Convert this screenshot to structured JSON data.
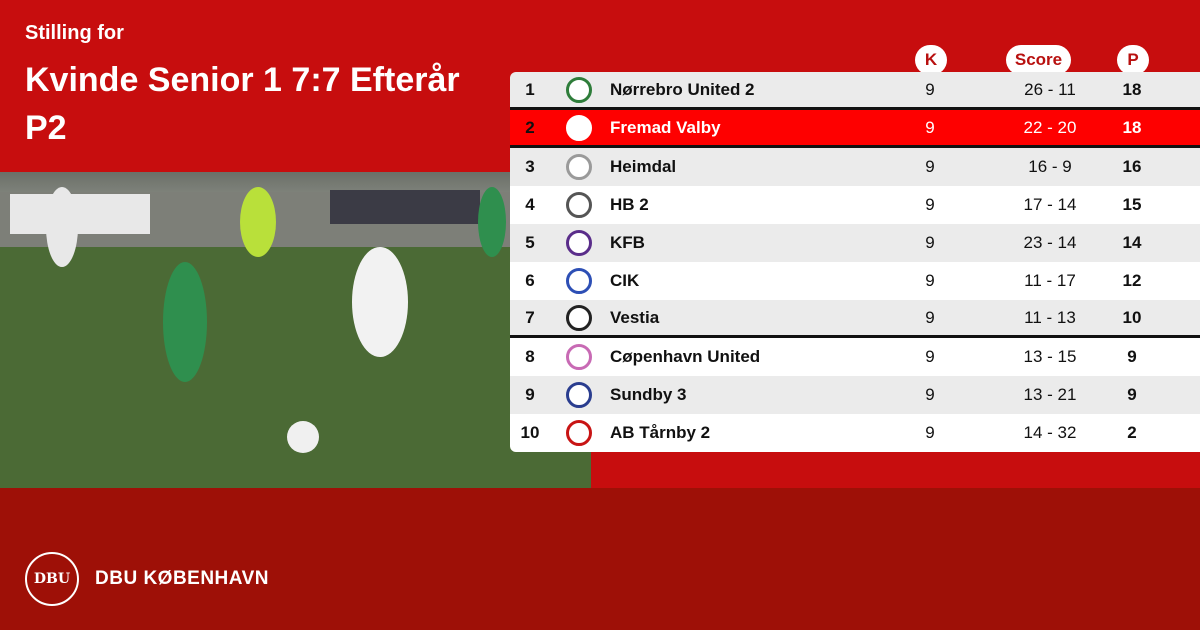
{
  "header": {
    "subtitle": "Stilling for",
    "title": "Kvinde Senior 1 7:7 Efterår P2"
  },
  "columns": {
    "k": "K",
    "score": "Score",
    "p": "P"
  },
  "rows": [
    {
      "pos": "1",
      "team": "Nørrebro United 2",
      "k": "9",
      "score": "26 - 11",
      "p": "18",
      "logo_color": "#2e7d3a"
    },
    {
      "pos": "2",
      "team": "Fremad Valby",
      "k": "9",
      "score": "22 - 20",
      "p": "18",
      "logo_color": "#ffffff",
      "highlight": true
    },
    {
      "pos": "3",
      "team": "Heimdal",
      "k": "9",
      "score": "16 - 9",
      "p": "16",
      "logo_color": "#9a9a9a"
    },
    {
      "pos": "4",
      "team": "HB 2",
      "k": "9",
      "score": "17 - 14",
      "p": "15",
      "logo_color": "#555555"
    },
    {
      "pos": "5",
      "team": "KFB",
      "k": "9",
      "score": "23 - 14",
      "p": "14",
      "logo_color": "#5a2d8a"
    },
    {
      "pos": "6",
      "team": "CIK",
      "k": "9",
      "score": "11 - 17",
      "p": "12",
      "logo_color": "#2d4fb5"
    },
    {
      "pos": "7",
      "team": "Vestia",
      "k": "9",
      "score": "11 - 13",
      "p": "10",
      "logo_color": "#222222"
    },
    {
      "pos": "8",
      "team": "Cøpenhavn United",
      "k": "9",
      "score": "13 - 15",
      "p": "9",
      "logo_color": "#c86ab4"
    },
    {
      "pos": "9",
      "team": "Sundby 3",
      "k": "9",
      "score": "13 - 21",
      "p": "9",
      "logo_color": "#2a3d8f"
    },
    {
      "pos": "10",
      "team": "AB Tårnby 2",
      "k": "9",
      "score": "14 - 32",
      "p": "2",
      "logo_color": "#c81414"
    }
  ],
  "footer": {
    "brand": "DBU KØBENHAVN",
    "logo_text": "DBU"
  }
}
